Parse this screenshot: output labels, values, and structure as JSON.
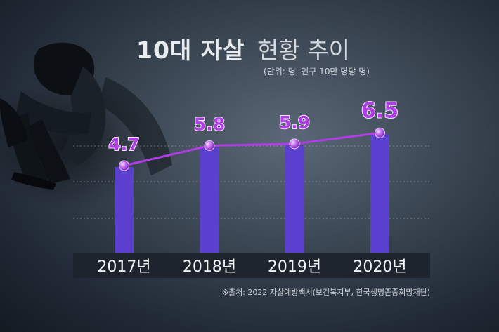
{
  "title": {
    "bold": "10대 자살",
    "regular": "현황 추이"
  },
  "unit_note": "(단위: 명, 인구 10만 명당 명)",
  "source": "※출처: 2022 자살예방백서(보건복지부, 한국생명존중희망재단)",
  "colors": {
    "bar": "#5b3fcf",
    "line": "#b13de6",
    "marker": "#c36ff0",
    "value_label": "#b13de6",
    "category_band": "#1c232b"
  },
  "chart_data": {
    "type": "bar",
    "categories": [
      "2017년",
      "2018년",
      "2019년",
      "2020년"
    ],
    "values": [
      4.7,
      5.8,
      5.9,
      6.5
    ],
    "value_labels": [
      "4.7",
      "5.8",
      "5.9",
      "6.5"
    ],
    "title": "10대 자살 현황 추이",
    "xlabel": "",
    "ylabel": "",
    "ylim": [
      0,
      6.8
    ],
    "grid": true,
    "overlay": "line with markers"
  }
}
